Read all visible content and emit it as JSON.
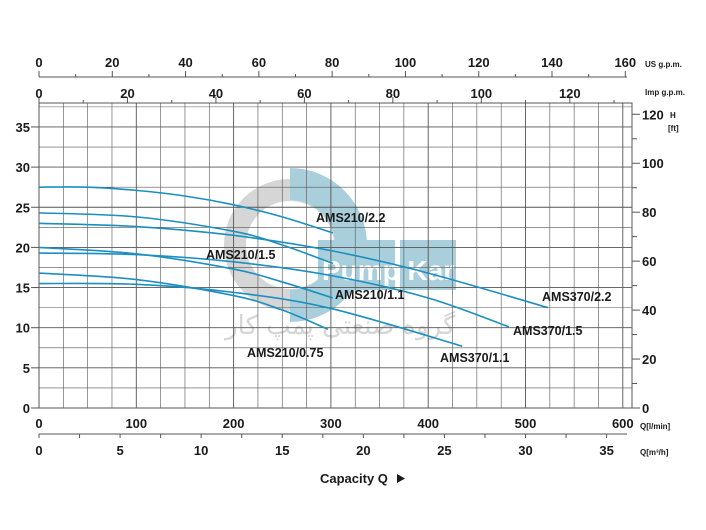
{
  "chart_data": {
    "type": "line",
    "title": "",
    "xlabel": "Capacity Q",
    "x_unit": "Q[l/min]",
    "x_secondary_unit": "Q[m³/h]",
    "top_axis_1_unit": "US g.p.m.",
    "top_axis_2_unit": "Imp g.p.m.",
    "ylabel_left": "",
    "ylabel_right": "H",
    "ylabel_right_unit": "[ft]",
    "xlim": [
      0,
      610
    ],
    "ylim": [
      0,
      38
    ],
    "grid": true,
    "ticks": {
      "l_min": [
        0,
        100,
        200,
        300,
        400,
        500,
        600
      ],
      "m3_h": [
        0,
        5,
        10,
        15,
        20,
        25,
        30,
        35
      ],
      "us_gpm": [
        0,
        20,
        40,
        60,
        80,
        100,
        120,
        140,
        160
      ],
      "imp_gpm": [
        0,
        20,
        40,
        60,
        80,
        100,
        120
      ],
      "m": [
        0,
        5,
        10,
        15,
        20,
        25,
        30,
        35
      ],
      "ft": [
        0,
        20,
        40,
        60,
        80,
        100,
        120
      ]
    },
    "series": [
      {
        "name": "AMS210/2.2",
        "x": [
          0,
          50,
          100,
          150,
          200,
          250,
          302
        ],
        "y": [
          27.5,
          27.5,
          27.1,
          26.4,
          25.3,
          23.8,
          21.8
        ]
      },
      {
        "name": "AMS210/1.5",
        "x": [
          0,
          100,
          200,
          250,
          302
        ],
        "y": [
          24.3,
          23.8,
          22.0,
          20.3,
          18.0
        ]
      },
      {
        "name": "AMS370/2.2",
        "x": [
          0,
          100,
          200,
          300,
          400,
          523
        ],
        "y": [
          23.0,
          22.6,
          21.5,
          19.6,
          16.8,
          12.5
        ]
      },
      {
        "name": "AMS210/1.1",
        "x": [
          0,
          100,
          200,
          250,
          302
        ],
        "y": [
          20.0,
          19.2,
          17.3,
          15.7,
          13.7
        ]
      },
      {
        "name": "AMS370/1.5",
        "x": [
          0,
          100,
          200,
          300,
          400,
          483
        ],
        "y": [
          19.3,
          19.1,
          18.2,
          16.5,
          13.7,
          10.1
        ]
      },
      {
        "name": "AMS210/0.75",
        "x": [
          0,
          100,
          200,
          250,
          297
        ],
        "y": [
          16.8,
          16.0,
          14.0,
          12.2,
          9.8
        ]
      },
      {
        "name": "AMS370/1.1",
        "x": [
          0,
          100,
          200,
          300,
          435
        ],
        "y": [
          15.5,
          15.4,
          14.4,
          12.4,
          7.7
        ]
      }
    ],
    "watermark": {
      "text_en": "Pump Kar",
      "text_fa": "گروه صنعتی پمپ کار"
    }
  },
  "colors": {
    "curve": "#1b8fc0",
    "grid": "#555555",
    "watermark_gray": "#d6d6d6",
    "watermark_blue": "#a9cfdc"
  }
}
